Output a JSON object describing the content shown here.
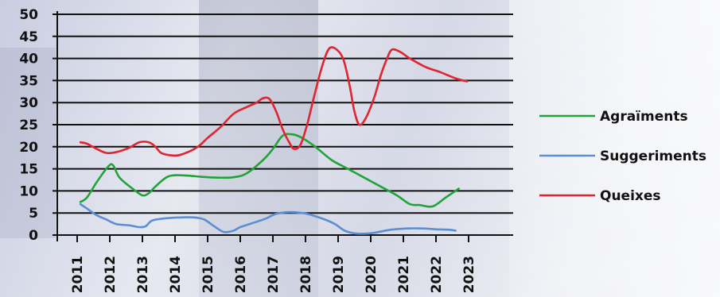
{
  "chart_data": {
    "type": "line",
    "title": "",
    "xlabel": "",
    "ylabel": "",
    "ylim": [
      0,
      50
    ],
    "yticks": [
      0,
      5,
      10,
      15,
      20,
      25,
      30,
      35,
      40,
      45,
      50
    ],
    "xticks": [
      "2011",
      "2012",
      "2013",
      "2014",
      "2015",
      "2016",
      "2017",
      "2018",
      "2019",
      "2020",
      "2021",
      "2022",
      "2023"
    ],
    "grid": "horizontal",
    "legend_position": "right",
    "series": [
      {
        "name": "Agraïments",
        "color": "#22a33a",
        "points": [
          [
            2011.1,
            7.5
          ],
          [
            2011.3,
            8.5
          ],
          [
            2011.6,
            12
          ],
          [
            2011.95,
            15.5
          ],
          [
            2012.1,
            15.8
          ],
          [
            2012.3,
            13
          ],
          [
            2012.7,
            10.5
          ],
          [
            2013.0,
            9
          ],
          [
            2013.2,
            9.5
          ],
          [
            2013.4,
            11
          ],
          [
            2013.8,
            13.3
          ],
          [
            2014.3,
            13.5
          ],
          [
            2014.8,
            13.2
          ],
          [
            2015.3,
            13
          ],
          [
            2015.8,
            13.1
          ],
          [
            2016.2,
            14
          ],
          [
            2016.7,
            17
          ],
          [
            2017.0,
            19.5
          ],
          [
            2017.3,
            22.5
          ],
          [
            2017.6,
            22.8
          ],
          [
            2017.9,
            22
          ],
          [
            2018.3,
            20
          ],
          [
            2018.8,
            17
          ],
          [
            2019.3,
            15
          ],
          [
            2019.8,
            13
          ],
          [
            2020.3,
            11
          ],
          [
            2020.8,
            9
          ],
          [
            2021.2,
            7
          ],
          [
            2021.5,
            6.8
          ],
          [
            2021.9,
            6.5
          ],
          [
            2022.3,
            8.5
          ],
          [
            2022.7,
            10.5
          ]
        ]
      },
      {
        "name": "Suggeriments",
        "color": "#5b8fd1",
        "points": [
          [
            2011.1,
            7
          ],
          [
            2011.3,
            6
          ],
          [
            2011.6,
            4.5
          ],
          [
            2011.9,
            3.5
          ],
          [
            2012.2,
            2.5
          ],
          [
            2012.6,
            2.2
          ],
          [
            2012.9,
            1.8
          ],
          [
            2013.1,
            2
          ],
          [
            2013.3,
            3.3
          ],
          [
            2013.7,
            3.8
          ],
          [
            2014.2,
            4
          ],
          [
            2014.6,
            4
          ],
          [
            2014.9,
            3.5
          ],
          [
            2015.2,
            2
          ],
          [
            2015.5,
            0.7
          ],
          [
            2015.8,
            1
          ],
          [
            2016.0,
            1.8
          ],
          [
            2016.5,
            3
          ],
          [
            2016.8,
            3.8
          ],
          [
            2017.1,
            4.8
          ],
          [
            2017.5,
            5.2
          ],
          [
            2017.9,
            5
          ],
          [
            2018.2,
            4.5
          ],
          [
            2018.6,
            3.5
          ],
          [
            2018.9,
            2.5
          ],
          [
            2019.2,
            1
          ],
          [
            2019.5,
            0.4
          ],
          [
            2019.8,
            0.3
          ],
          [
            2020.1,
            0.5
          ],
          [
            2020.6,
            1.2
          ],
          [
            2021.1,
            1.5
          ],
          [
            2021.6,
            1.5
          ],
          [
            2022.0,
            1.3
          ],
          [
            2022.4,
            1.2
          ],
          [
            2022.6,
            1
          ]
        ]
      },
      {
        "name": "Queixes",
        "color": "#e02430",
        "points": [
          [
            2011.1,
            21
          ],
          [
            2011.3,
            20.7
          ],
          [
            2011.6,
            19.5
          ],
          [
            2011.9,
            18.6
          ],
          [
            2012.2,
            18.8
          ],
          [
            2012.6,
            19.8
          ],
          [
            2012.9,
            21
          ],
          [
            2013.2,
            21
          ],
          [
            2013.4,
            20
          ],
          [
            2013.6,
            18.5
          ],
          [
            2014.0,
            18
          ],
          [
            2014.3,
            18.5
          ],
          [
            2014.7,
            20
          ],
          [
            2015.0,
            22
          ],
          [
            2015.4,
            24.5
          ],
          [
            2015.8,
            27.5
          ],
          [
            2016.2,
            29
          ],
          [
            2016.5,
            30
          ],
          [
            2016.7,
            31
          ],
          [
            2016.9,
            30.8
          ],
          [
            2017.1,
            28
          ],
          [
            2017.3,
            24
          ],
          [
            2017.5,
            21
          ],
          [
            2017.65,
            19.5
          ],
          [
            2017.85,
            20.5
          ],
          [
            2018.05,
            25
          ],
          [
            2018.25,
            31
          ],
          [
            2018.5,
            38
          ],
          [
            2018.7,
            42
          ],
          [
            2018.9,
            42.3
          ],
          [
            2019.15,
            40
          ],
          [
            2019.35,
            34
          ],
          [
            2019.5,
            28
          ],
          [
            2019.65,
            25
          ],
          [
            2019.85,
            26.5
          ],
          [
            2020.1,
            31
          ],
          [
            2020.3,
            36
          ],
          [
            2020.5,
            40
          ],
          [
            2020.65,
            42
          ],
          [
            2020.9,
            41.5
          ],
          [
            2021.2,
            40
          ],
          [
            2021.7,
            38
          ],
          [
            2022.1,
            37
          ],
          [
            2022.6,
            35.5
          ],
          [
            2022.95,
            34.8
          ]
        ]
      }
    ]
  }
}
